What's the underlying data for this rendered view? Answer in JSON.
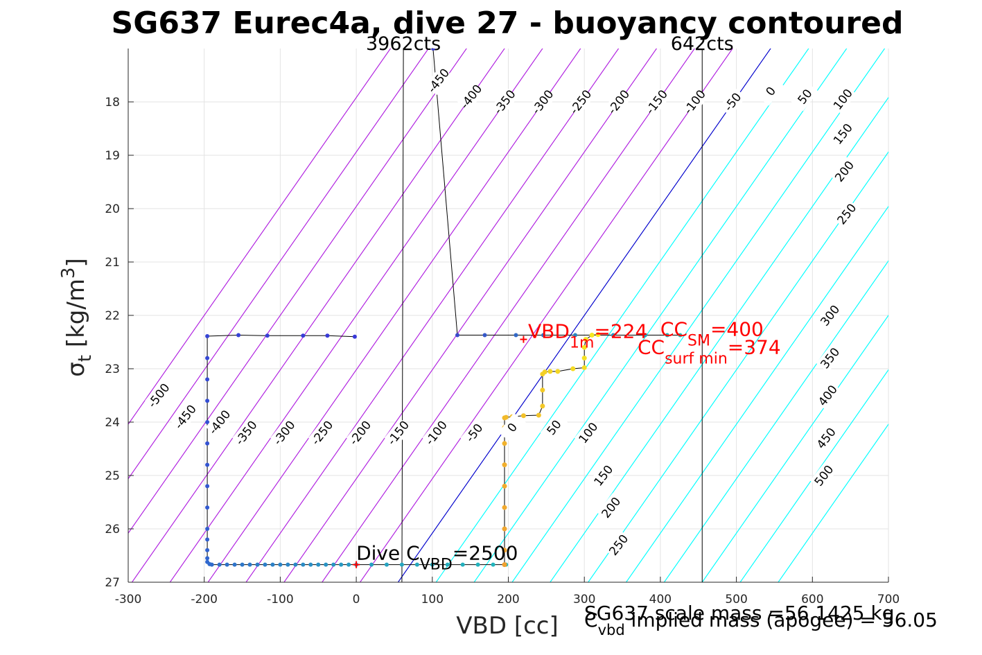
{
  "chart_data": {
    "type": "scatter",
    "title": "SG637 Eurec4a, dive 27 - buoyancy contoured",
    "xlabel": "VBD [cc]",
    "ylabel": {
      "base": "σ",
      "sub": "t",
      "mid": " [kg/m",
      "sup": "3",
      "end": "]"
    },
    "xlim": [
      -300,
      700
    ],
    "ylim": [
      17,
      27
    ],
    "y_reversed": true,
    "x_ticks": [
      -300,
      -200,
      -100,
      0,
      100,
      200,
      300,
      400,
      500,
      600,
      700
    ],
    "y_ticks": [
      18,
      19,
      20,
      21,
      22,
      23,
      24,
      25,
      26,
      27
    ],
    "grid": true,
    "counts_labels": [
      {
        "text": "3962cts",
        "x": 62
      },
      {
        "text": "642cts",
        "x": 455
      }
    ],
    "contours": {
      "levels": [
        -500,
        -450,
        -400,
        -350,
        -300,
        -250,
        -200,
        -150,
        -100,
        -50,
        0,
        50,
        100,
        150,
        200,
        250,
        300,
        350,
        400,
        450,
        500
      ],
      "neutral_color": "#0000cc",
      "positive_color": "#b020e0",
      "negative_color": "#00ffff",
      "upper_family": {
        "zero_at_y17_x": 545,
        "labels": [
          {
            "level": -450,
            "x": 108,
            "y": 17.6
          },
          {
            "level": -400,
            "x": 151,
            "y": 17.9
          },
          {
            "level": -350,
            "x": 195,
            "y": 18.0
          },
          {
            "level": -300,
            "x": 245,
            "y": 18.0
          },
          {
            "level": -250,
            "x": 295,
            "y": 18.0
          },
          {
            "level": -200,
            "x": 345,
            "y": 18.0
          },
          {
            "level": -150,
            "x": 395,
            "y": 18.0
          },
          {
            "level": -100,
            "x": 445,
            "y": 18.0
          },
          {
            "level": -50,
            "x": 495,
            "y": 18.0
          },
          {
            "level": 0,
            "x": 545,
            "y": 17.8
          },
          {
            "level": 50,
            "x": 590,
            "y": 17.9
          },
          {
            "level": 100,
            "x": 640,
            "y": 17.95
          },
          {
            "level": 150,
            "x": 640,
            "y": 18.6
          },
          {
            "level": 200,
            "x": 642,
            "y": 19.3
          },
          {
            "level": 250,
            "x": 645,
            "y": 20.1
          },
          {
            "level": 300,
            "x": 623,
            "y": 22.0
          },
          {
            "level": 350,
            "x": 623,
            "y": 22.8
          },
          {
            "level": 400,
            "x": 620,
            "y": 23.5
          },
          {
            "level": 450,
            "x": 618,
            "y": 24.3
          },
          {
            "level": 500,
            "x": 615,
            "y": 25.0
          }
        ]
      },
      "lower_family": {
        "zero_at_y27_x": 55,
        "labels": [
          {
            "level": -500,
            "x": -260,
            "y": 23.5
          },
          {
            "level": -450,
            "x": -225,
            "y": 23.9
          },
          {
            "level": -400,
            "x": -180,
            "y": 24.0
          },
          {
            "level": -350,
            "x": -145,
            "y": 24.2
          },
          {
            "level": -300,
            "x": -95,
            "y": 24.2
          },
          {
            "level": -250,
            "x": -45,
            "y": 24.2
          },
          {
            "level": -200,
            "x": 5,
            "y": 24.2
          },
          {
            "level": -150,
            "x": 55,
            "y": 24.2
          },
          {
            "level": -100,
            "x": 105,
            "y": 24.2
          },
          {
            "level": -50,
            "x": 155,
            "y": 24.2
          },
          {
            "level": 0,
            "x": 205,
            "y": 24.1
          },
          {
            "level": 50,
            "x": 260,
            "y": 24.1
          },
          {
            "level": 100,
            "x": 305,
            "y": 24.2
          },
          {
            "level": 150,
            "x": 325,
            "y": 25.0
          },
          {
            "level": 200,
            "x": 335,
            "y": 25.6
          },
          {
            "level": 250,
            "x": 345,
            "y": 26.3
          }
        ]
      }
    },
    "cnt_lines": [
      {
        "x_top": 62,
        "x_bottom": 60
      },
      {
        "x_top": 455,
        "x_bottom": 455
      }
    ],
    "series": [
      {
        "marker_color_start": "#3c3ccf",
        "marker_color_end": "#1ec0b4",
        "x": [
          101,
          133,
          169,
          210,
          246,
          288,
          338,
          380,
          409,
          426
        ],
        "y": [
          17.0,
          22.37,
          22.37,
          22.37,
          22.37,
          22.37,
          22.37,
          22.37,
          22.37,
          22.37
        ]
      },
      {
        "marker_color_start": "#3838d8",
        "marker_color_end": "#22b8bc",
        "x": [
          -2,
          -38,
          -70,
          -117,
          -155,
          -196,
          -196,
          -196,
          -196,
          -196,
          -196,
          -196,
          -196,
          -196,
          -196,
          -196,
          -196,
          -196,
          -196,
          -193,
          -190,
          -180,
          -170,
          -160,
          -150,
          -140,
          -130,
          -120,
          -110,
          -100,
          -90,
          -80,
          -70,
          -60,
          -50,
          -40,
          -30,
          -20,
          -10,
          0,
          20,
          40,
          60,
          80,
          100,
          120,
          140,
          160,
          180,
          197
        ],
        "y": [
          22.4,
          22.38,
          22.38,
          22.38,
          22.37,
          22.39,
          22.8,
          23.2,
          23.6,
          24.0,
          24.4,
          24.8,
          25.2,
          25.6,
          26.0,
          26.2,
          26.4,
          26.55,
          26.62,
          26.66,
          26.67,
          26.67,
          26.67,
          26.67,
          26.67,
          26.67,
          26.67,
          26.67,
          26.67,
          26.67,
          26.67,
          26.67,
          26.67,
          26.67,
          26.67,
          26.67,
          26.67,
          26.67,
          26.67,
          26.67,
          26.67,
          26.67,
          26.67,
          26.67,
          26.67,
          26.67,
          26.67,
          26.67,
          26.67,
          26.67
        ]
      },
      {
        "marker_color_start": "#f0a030",
        "marker_color_end": "#f5ec20",
        "x": [
          195,
          195,
          195,
          195,
          195,
          195,
          195,
          195,
          195,
          197,
          205,
          220,
          240,
          245,
          245,
          245,
          248,
          255,
          265,
          285,
          300,
          300,
          300,
          302,
          310,
          318
        ],
        "y": [
          26.67,
          26.4,
          26.0,
          25.6,
          25.2,
          24.8,
          24.4,
          24.1,
          23.92,
          23.91,
          23.9,
          23.88,
          23.87,
          23.7,
          23.4,
          23.1,
          23.06,
          23.05,
          23.05,
          23.0,
          22.98,
          22.8,
          22.6,
          22.45,
          22.37,
          22.36
        ]
      }
    ],
    "markers": [
      {
        "x": 220,
        "y": 22.45,
        "color": "#ff0000"
      },
      {
        "x": 0,
        "y": 26.67,
        "color": "#ff0000"
      }
    ],
    "annotations": [
      {
        "base": "VBD",
        "sub": "1m",
        "rest": "=224",
        "x": 226,
        "y": 22.42,
        "color": "#ff0000"
      },
      {
        "base": "CC",
        "sub": "SM",
        "rest": "=400",
        "x": 400,
        "y": 22.38,
        "color": "#ff0000"
      },
      {
        "base": "CC",
        "sub": "surf min",
        "rest": "=374",
        "x": 370,
        "y": 22.72,
        "color": "#ff0000"
      },
      {
        "base": "Dive C",
        "sub": "VBD",
        "rest": "=2500",
        "x": 0,
        "y": 26.58,
        "color": "#000000"
      }
    ],
    "footer": {
      "scale_mass": "SG637 scale mass =56.1425 kg",
      "cvbd_base": "C",
      "cvbd_sub": "vbd",
      "implied": " implied mass (apogee) = 56.05"
    }
  }
}
